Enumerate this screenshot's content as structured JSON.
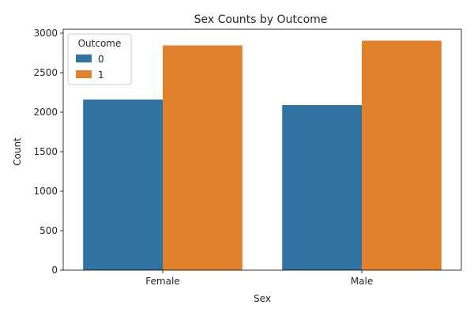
{
  "chart_data": {
    "type": "bar",
    "title": "Sex Counts by Outcome",
    "xlabel": "Sex",
    "ylabel": "Count",
    "categories": [
      "Female",
      "Male"
    ],
    "series": [
      {
        "name": "0",
        "values": [
          2160,
          2090
        ],
        "color": "#3274a1"
      },
      {
        "name": "1",
        "values": [
          2845,
          2905
        ],
        "color": "#e1812c"
      }
    ],
    "ylim": [
      0,
      3050
    ],
    "yticks": [
      0,
      500,
      1000,
      1500,
      2000,
      2500,
      3000
    ],
    "yticks_labels": [
      "0",
      "500",
      "1000",
      "1500",
      "2000",
      "2500",
      "3000"
    ],
    "grid": false,
    "legend": {
      "title": "Outcome",
      "placement": "top-left"
    }
  }
}
